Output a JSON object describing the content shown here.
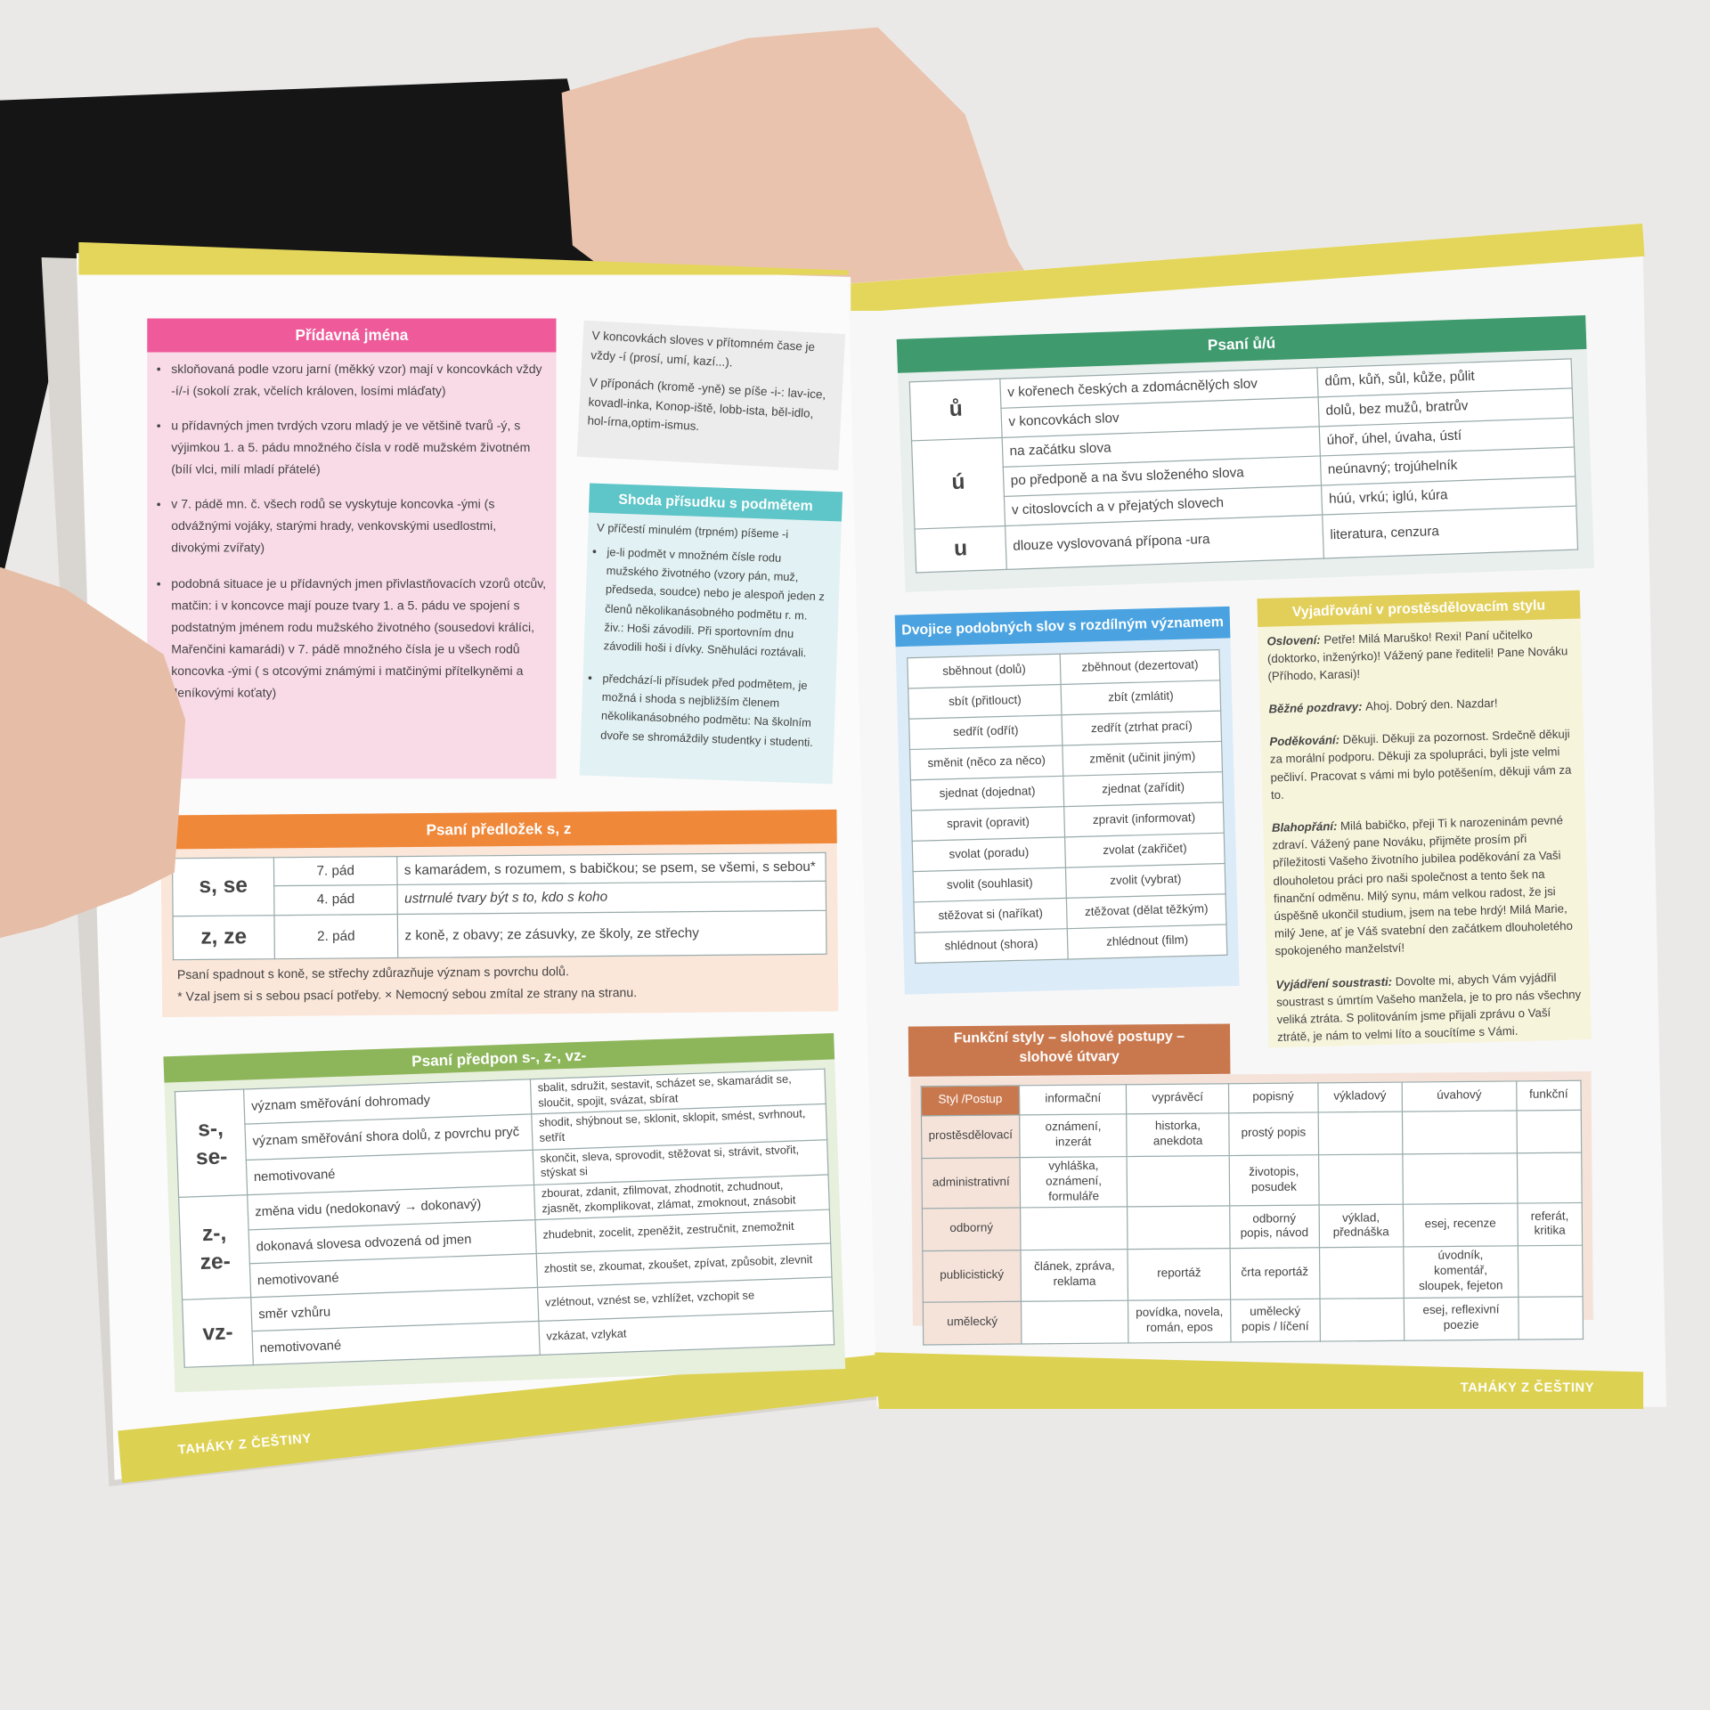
{
  "left_page": {
    "pridavna_jmena": {
      "title": "Přídavná jména",
      "bullets": [
        "skloňovaná podle vzoru jarní (měkký vzor) mají v koncovkách vždy -í/-i (sokolí zrak, včelích královen, losími mláďaty)",
        "u přídavných jmen tvrdých vzoru mladý je ve většině tvarů -ý, s výjimkou 1. a 5. pádu množného čísla v rodě mužském životném (bílí vlci, milí mladí přátelé)",
        "v 7. pádě mn. č. všech rodů se vyskytuje koncovka -ými (s odvážnými vojáky, starými hrady, venkovskými usedlostmi, divokými zvířaty)",
        "podobná situace je u přídavných jmen přivlastňovacích vzorů otcův, matčin: i v koncovce mají pouze tvary 1. a 5. pádu ve spojení s podstatným jménem rodu mužského životného (sousedovi králíci, Mařenčini kamarádi) v 7. pádě množného čísla je u všech rodů koncovka -ými ( s otcovými známými i matčinými přítelkyněmi a Jeníkovými koťaty)"
      ]
    },
    "koncovky": {
      "p1": "V koncovkách sloves v přítomném čase je vždy -í (prosí, umí, kazí...).",
      "p2": "V příponách (kromě -yně) se píše -i-: lav-ice, kovadl-inka, Konop-iště, lobb-ista, běl-idlo, hol-írna,optim-ismus."
    },
    "shoda": {
      "title": "Shoda přísudku s podmětem",
      "intro": "V příčestí minulém (trpném) píšeme -i",
      "bullets": [
        "je-li podmět v množném čísle rodu mužského životného (vzory pán, muž, předseda, soudce) nebo je alespoň jeden z členů několikanásobného podmětu r. m. živ.: Hoši závodili. Při sportovním dnu závodili hoši i dívky. Sněhuláci roztávali.",
        "předchází-li přísudek před podmětem, je možná i shoda s nejbližším členem několikanásobného podmětu: Na školním dvoře se shromáždily studentky i studenti."
      ]
    },
    "predlozky": {
      "title": "Psaní předložek s, z",
      "rows": [
        {
          "prep": "s, se",
          "case": "7. pád",
          "examples": "s kamarádem, s rozumem, s babičkou; se psem, se všemi, s sebou*"
        },
        {
          "prep": "",
          "case": "4. pád",
          "examples": "ustrnulé tvary být s to, kdo s koho"
        },
        {
          "prep": "z, ze",
          "case": "2. pád",
          "examples": "z koně, z obavy; ze zásuvky, ze školy, ze střechy"
        }
      ],
      "note1": "Psaní spadnout s koně, se střechy zdůrazňuje význam s povrchu dolů.",
      "note2": "* Vzal jsem si s sebou psací potřeby. × Nemocný sebou zmítal ze strany na stranu."
    },
    "predpony": {
      "title": "Psaní předpon s-, z-, vz-",
      "groups": [
        {
          "prefix": "s-, se-",
          "rows": [
            {
              "meaning": "význam směřování dohromady",
              "examples": "sbalit, sdružit, sestavit, scházet se, skamarádit se, sloučit, spojit, svázat, sbírat"
            },
            {
              "meaning": "význam směřování shora dolů, z povrchu pryč",
              "examples": "shodit, shýbnout se, sklonit, sklopit, smést, svrhnout, setřít"
            },
            {
              "meaning": "nemotivované",
              "examples": "skončit, sleva, sprovodit, stěžovat si, strávit, stvořit, stýskat si"
            }
          ]
        },
        {
          "prefix": "z-, ze-",
          "rows": [
            {
              "meaning": "změna vidu (nedokonavý → dokonavý)",
              "examples": "zbourat, zdanit, zfilmovat, zhodnotit, zchudnout, zjasnět, zkomplikovat, zlámat, zmoknout, znásobit"
            },
            {
              "meaning": "dokonavá slovesa odvozená od jmen",
              "examples": "zhudebnit, zocelit, zpeněžit, zestručnit, znemožnit"
            },
            {
              "meaning": "nemotivované",
              "examples": "zhostit se, zkoumat, zkoušet, zpívat, způsobit, zlevnit"
            }
          ]
        },
        {
          "prefix": "vz-",
          "rows": [
            {
              "meaning": "směr vzhůru",
              "examples": "vzlétnout, vznést se, vzhlížet, vzchopit se"
            },
            {
              "meaning": "nemotivované",
              "examples": "vzkázat, vzlykat"
            }
          ]
        }
      ]
    },
    "footer": "TAHÁKY Z ČEŠTINY"
  },
  "right_page": {
    "psani_uu": {
      "title": "Psaní ů/ú",
      "groups": [
        {
          "letter": "ů",
          "rows": [
            {
              "rule": "v kořenech českých a zdomácnělých slov",
              "examples": "dům, kůň, sůl, kůže, půlit"
            },
            {
              "rule": "v koncovkách slov",
              "examples": "dolů, bez mužů, bratrův"
            }
          ]
        },
        {
          "letter": "ú",
          "rows": [
            {
              "rule": "na začátku slova",
              "examples": "úhoř, úhel, úvaha, ústí"
            },
            {
              "rule": "po předponě a na švu složeného slova",
              "examples": "neúnavný; trojúhelník"
            },
            {
              "rule": "v citoslovcích a v přejatých slovech",
              "examples": "húú, vrkú; iglú, kúra"
            }
          ]
        },
        {
          "letter": "u",
          "rows": [
            {
              "rule": "dlouze vyslovovaná přípona -ura",
              "examples": "literatura, cenzura"
            }
          ]
        }
      ]
    },
    "dvojice": {
      "title": "Dvojice podobných slov s rozdílným významem",
      "pairs": [
        [
          "sběhnout (dolů)",
          "zběhnout (dezertovat)"
        ],
        [
          "sbít (přitlouct)",
          "zbít (zmlátit)"
        ],
        [
          "sedřít (odřít)",
          "zedřít (ztrhat prací)"
        ],
        [
          "směnit (něco za něco)",
          "změnit (učinit jiným)"
        ],
        [
          "sjednat (dojednat)",
          "zjednat (zařídit)"
        ],
        [
          "spravit (opravit)",
          "zpravit (informovat)"
        ],
        [
          "svolat (poradu)",
          "zvolat (zakřičet)"
        ],
        [
          "svolit (souhlasit)",
          "zvolit (vybrat)"
        ],
        [
          "stěžovat si (naříkat)",
          "ztěžovat (dělat těžkým)"
        ],
        [
          "shlédnout (shora)",
          "zhlédnout (film)"
        ]
      ]
    },
    "vyjadrovani": {
      "title": "Vyjadřování v prostěsdělovacím stylu",
      "paragraphs": [
        {
          "label": "Oslovení:",
          "text": "Petře! Milá Maruško! Rexi! Paní učitelko (doktorko, inženýrko)! Vážený pane řediteli! Pane Nováku (Příhodo, Karasi)!"
        },
        {
          "label": "Běžné pozdravy:",
          "text": "Ahoj. Dobrý den. Nazdar!"
        },
        {
          "label": "Poděkování:",
          "text": "Děkuji. Děkuji za pozornost. Srdečně děkuji za morální podporu. Děkuji za spolupráci, byli jste velmi pečliví. Pracovat s vámi mi bylo potěšením, děkuji vám za to."
        },
        {
          "label": "Blahopřání:",
          "text": "Milá babičko, přeji Ti k narozeninám pevné zdraví. Vážený pane Nováku, přijměte prosím při příležitosti Vašeho životního jubilea poděkování za Vaši dlouholetou práci pro naši společnost a tento šek na finanční odměnu. Milý synu, mám velkou radost, že jsi úspěšně ukončil studium, jsem na tebe hrdý! Milá Marie, milý Jene, ať je Váš svatební den začátkem dlouholetého spokojeného manželství!"
        },
        {
          "label": "Vyjádření soustrasti:",
          "text": "Dovolte mi, abych Vám vyjádřil soustrast s úmrtím Vašeho manžela, je to pro nás všechny veliká ztráta. S politováním jsme přijali zprávu o Vaší ztrátě, je nám to velmi líto a soucítíme s Vámi."
        }
      ]
    },
    "funkcni_styly": {
      "title_line1": "Funkční styly – slohové postupy –",
      "title_line2": "slohové útvary",
      "headers": [
        "Styl /Postup",
        "informační",
        "vyprávěcí",
        "popisný",
        "výkladový",
        "úvahový",
        "funkční"
      ],
      "rows": [
        [
          "prostěsdělovací",
          "oznámení, inzerát",
          "historka, anekdota",
          "prostý popis",
          "",
          "",
          ""
        ],
        [
          "administrativní",
          "vyhláška, oznámení, formuláře",
          "",
          "životopis, posudek",
          "",
          "",
          ""
        ],
        [
          "odborný",
          "",
          "",
          "odborný popis, návod",
          "výklad, přednáška",
          "esej, recenze",
          "referát, kritika"
        ],
        [
          "publicistický",
          "článek, zpráva, reklama",
          "reportáž",
          "črta reportáž",
          "",
          "úvodník, komentář, sloupek, fejeton",
          ""
        ],
        [
          "umělecký",
          "",
          "povídka, novela, román, epos",
          "umělecký popis / líčení",
          "",
          "esej, reflexivní poezie",
          ""
        ]
      ]
    },
    "footer": "TAHÁKY Z ČEŠTINY"
  },
  "colors": {
    "background": "#ebe9e8",
    "band_yellow": "#e4d65a",
    "pink": "#ee5a9a",
    "teal": "#5ec5c8",
    "orange": "#f0883a",
    "green_light": "#8db55a",
    "green_dark": "#3f9a6e",
    "blue": "#4aa3e0",
    "yellow_header": "#e2cf5a",
    "brown": "#c9784e"
  }
}
